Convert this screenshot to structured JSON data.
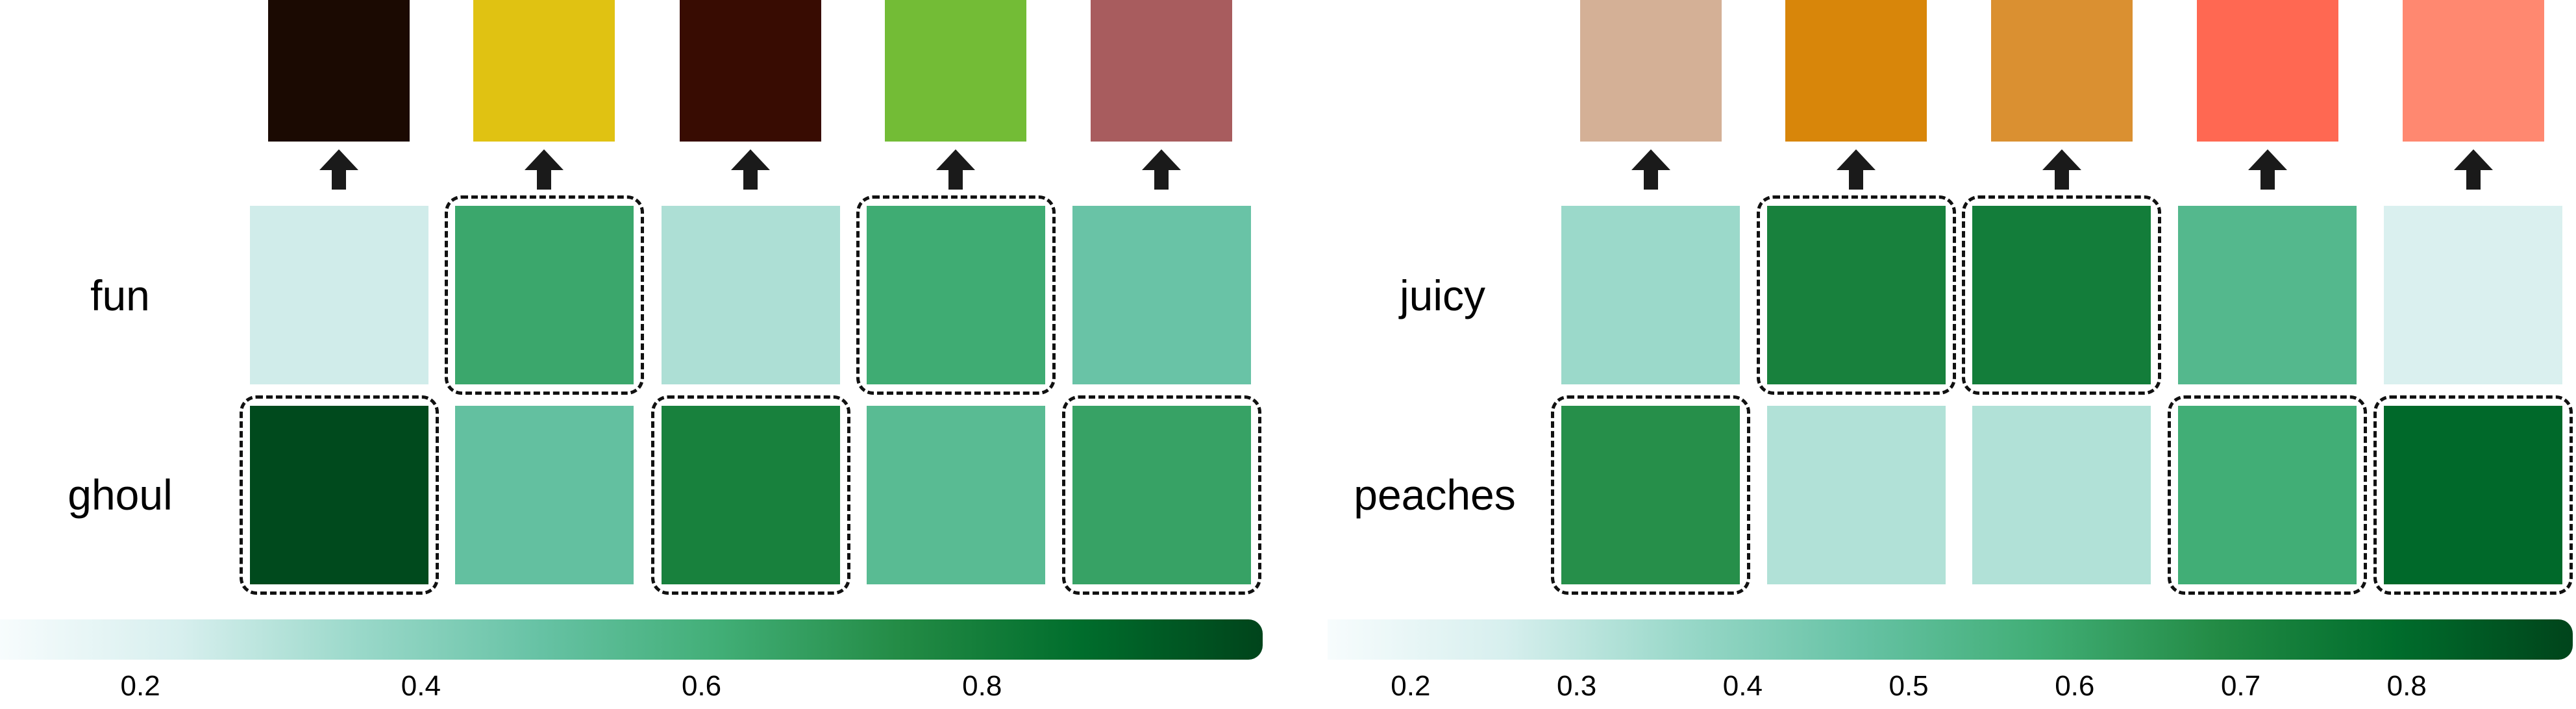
{
  "colors": {
    "cmap": [
      "#f7fcfd",
      "#d7efee",
      "#99d8c9",
      "#66c2a4",
      "#41ae76",
      "#238b45",
      "#006d2c",
      "#00441b"
    ],
    "arrow": "#1a1a1a",
    "dash": "#111111"
  },
  "panels": [
    {
      "swatch_colors": [
        "#1b0a02",
        "#e0c212",
        "#380c02",
        "#73bc36",
        "#a85c5e"
      ],
      "words": [
        {
          "label": "fun",
          "weights": [
            0.16,
            0.6,
            0.24,
            0.58,
            0.42
          ],
          "selected": [
            false,
            true,
            false,
            true,
            false
          ]
        },
        {
          "label": "ghoul",
          "weights": [
            0.98,
            0.44,
            0.76,
            0.48,
            0.62
          ],
          "selected": [
            true,
            false,
            true,
            false,
            true
          ]
        }
      ],
      "colorbar": {
        "min": 0.1,
        "max": 1.0,
        "ticks": [
          "0.2",
          "0.4",
          "0.6",
          "0.8"
        ],
        "tick_values": [
          0.2,
          0.4,
          0.6,
          0.8
        ]
      }
    },
    {
      "swatch_colors": [
        "#d4b096",
        "#d8860a",
        "#da9031",
        "#ff6852",
        "#ff8870"
      ],
      "words": [
        {
          "label": "juicy",
          "weights": [
            0.28,
            0.76,
            0.78,
            0.5,
            0.13
          ],
          "selected": [
            false,
            true,
            true,
            false,
            false
          ]
        },
        {
          "label": "peaches",
          "weights": [
            0.7,
            0.23,
            0.23,
            0.57,
            0.87
          ],
          "selected": [
            true,
            false,
            false,
            true,
            true
          ]
        }
      ],
      "colorbar": {
        "min": 0.15,
        "max": 0.9,
        "ticks": [
          "0.2",
          "0.3",
          "0.4",
          "0.5",
          "0.6",
          "0.7",
          "0.8"
        ],
        "tick_values": [
          0.2,
          0.3,
          0.4,
          0.5,
          0.6,
          0.7,
          0.8
        ]
      }
    }
  ]
}
